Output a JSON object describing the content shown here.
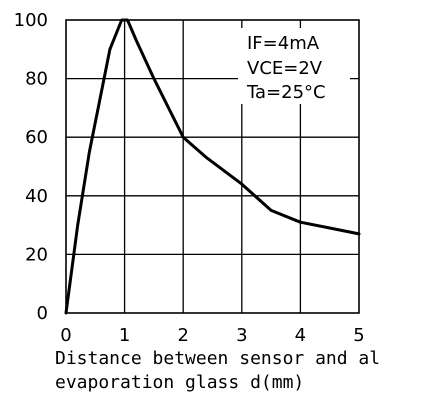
{
  "chart_data": {
    "type": "line",
    "title": "",
    "xlabel": "Distance between sensor and al\nevaporation glass d(mm)",
    "ylabel": "",
    "xlim": [
      0,
      5
    ],
    "ylim": [
      0,
      100
    ],
    "grid": true,
    "x_ticks": [
      0,
      1,
      2,
      3,
      4,
      5
    ],
    "y_ticks": [
      0,
      20,
      40,
      60,
      80,
      100
    ],
    "annotations": [
      "IF=4mA",
      "VCE=2V",
      "Ta=25°C"
    ],
    "series": [
      {
        "name": "",
        "x": [
          0,
          0.2,
          0.4,
          0.55,
          0.75,
          0.95,
          1.05,
          1.2,
          1.5,
          1.8,
          2.0,
          2.4,
          3.0,
          3.5,
          4.0,
          4.5,
          5.0
        ],
        "y": [
          0,
          30,
          55,
          70,
          90,
          100,
          100,
          93,
          80,
          68,
          60,
          53,
          44,
          35,
          31,
          29,
          27
        ]
      }
    ]
  }
}
